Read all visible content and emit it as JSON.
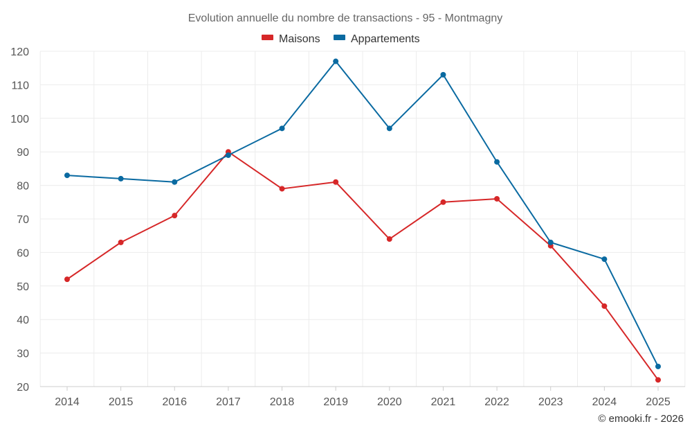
{
  "chart_data": {
    "type": "line",
    "title": "Evolution annuelle du nombre de transactions - 95 - Montmagny",
    "categories": [
      "2014",
      "2015",
      "2016",
      "2017",
      "2018",
      "2019",
      "2020",
      "2021",
      "2022",
      "2023",
      "2024",
      "2025"
    ],
    "series": [
      {
        "name": "Maisons",
        "color": "#d62728",
        "values": [
          52,
          63,
          71,
          90,
          79,
          81,
          64,
          75,
          76,
          62,
          44,
          22
        ]
      },
      {
        "name": "Appartements",
        "color": "#0a6aa1",
        "values": [
          83,
          82,
          81,
          89,
          97,
          117,
          97,
          113,
          87,
          63,
          58,
          26
        ]
      }
    ],
    "ylim": [
      20,
      120
    ],
    "yticks": [
      20,
      30,
      40,
      50,
      60,
      70,
      80,
      90,
      100,
      110,
      120
    ],
    "xlabel": "",
    "ylabel": "",
    "grid": true,
    "legend_position": "top-center"
  },
  "credit": "© emooki.fr - 2026"
}
